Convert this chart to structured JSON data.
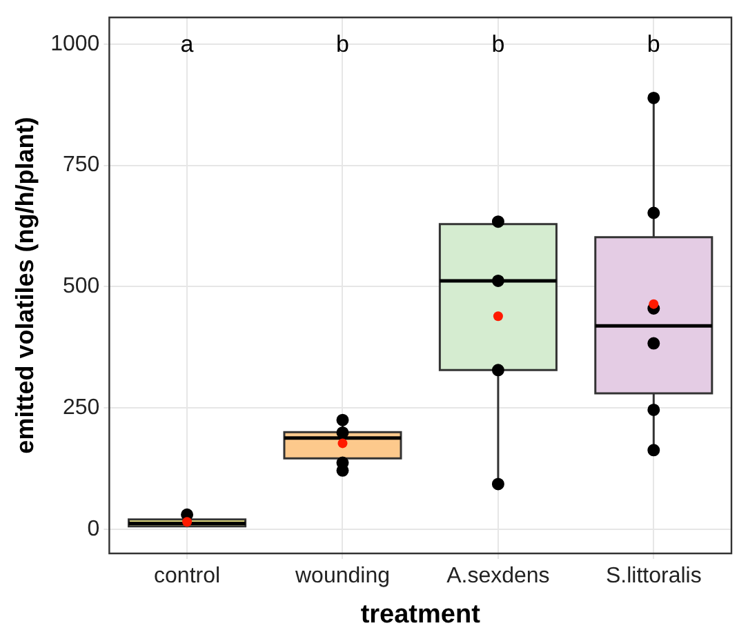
{
  "chart_data": {
    "type": "box",
    "xlabel": "treatment",
    "ylabel": "emitted volatiles (ng/h/plant)",
    "categories": [
      "control",
      "wounding",
      "A.sexdens",
      "S.littoralis"
    ],
    "colors": [
      "#f7f08a",
      "#fdc98c",
      "#d5ecd0",
      "#e4cce4"
    ],
    "boxes": [
      {
        "low": 6,
        "q1": 6,
        "median": 12,
        "q3": 20,
        "high": 30,
        "mean": 15
      },
      {
        "low": 121,
        "q1": 146,
        "median": 188,
        "q3": 200,
        "high": 225,
        "mean": 177
      },
      {
        "low": 93,
        "q1": 328,
        "median": 512,
        "q3": 629,
        "high": 634,
        "mean": 439
      },
      {
        "low": 163,
        "q1": 280,
        "median": 419,
        "q3": 602,
        "high": 889,
        "mean": 464
      }
    ],
    "series": [
      {
        "type": "scatter",
        "color": "#000000",
        "x": [
          "control",
          "control",
          "wounding",
          "wounding",
          "wounding",
          "wounding",
          "A.sexdens",
          "A.sexdens",
          "A.sexdens",
          "A.sexdens",
          "S.littoralis",
          "S.littoralis",
          "S.littoralis",
          "S.littoralis",
          "S.littoralis",
          "S.littoralis"
        ],
        "values": [
          30,
          null,
          225,
          199,
          137,
          121,
          634,
          512,
          328,
          93,
          889,
          652,
          455,
          383,
          246,
          163
        ]
      }
    ],
    "ylim": [
      -50,
      1055
    ],
    "yticks": [
      0,
      250,
      500,
      750,
      1000
    ],
    "grid": true,
    "legend": false,
    "annotations": [
      "a",
      "b",
      "b",
      "b"
    ]
  }
}
